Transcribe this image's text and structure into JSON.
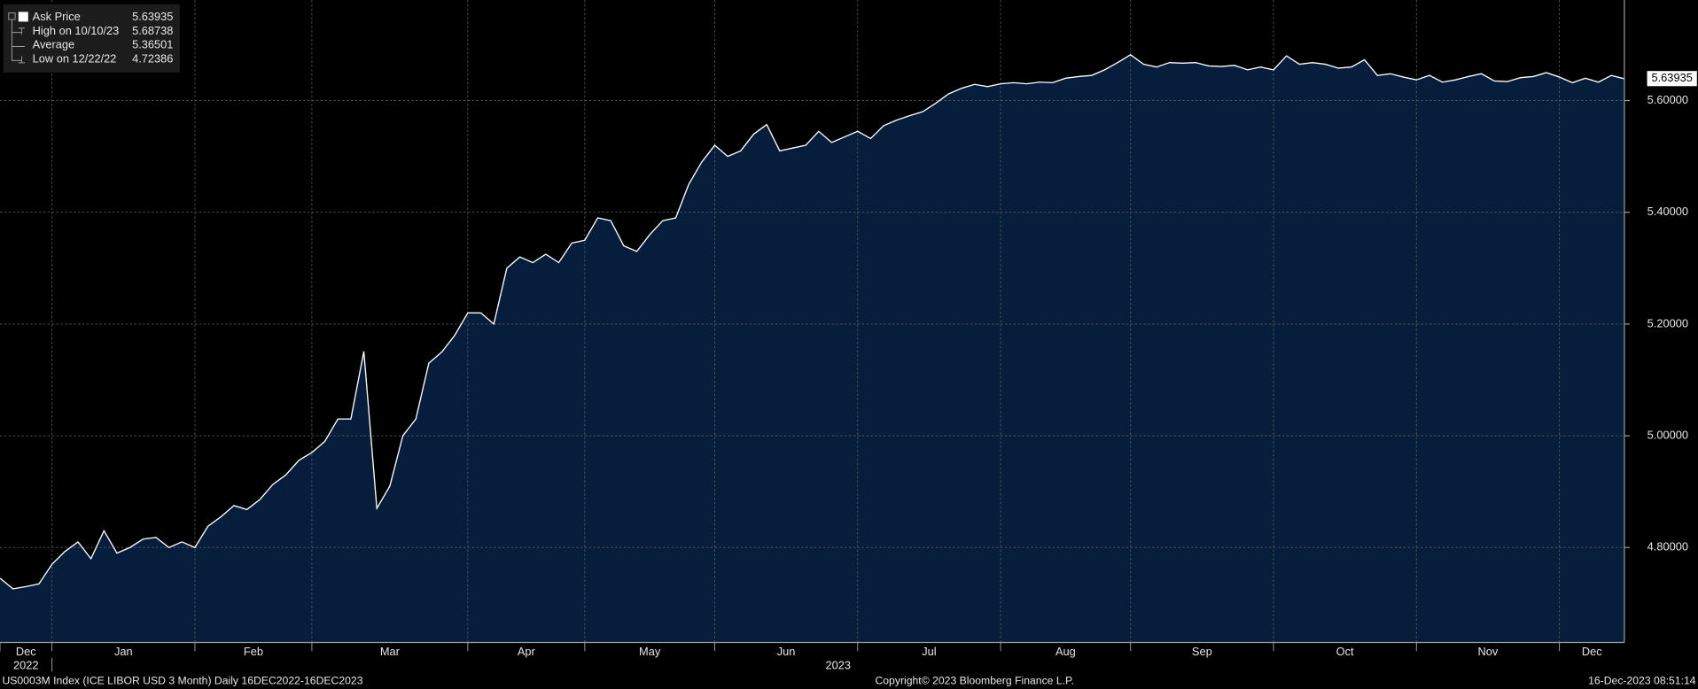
{
  "chart_data": {
    "type": "area",
    "series": [
      {
        "name": "Ask Price",
        "color": "#ffffff",
        "fill": "#061e3c",
        "last": 5.63935,
        "values": [
          4.745,
          4.726,
          4.73,
          4.735,
          4.77,
          4.793,
          4.81,
          4.78,
          4.83,
          4.79,
          4.8,
          4.815,
          4.818,
          4.8,
          4.81,
          4.8,
          4.838,
          4.855,
          4.875,
          4.868,
          4.886,
          4.913,
          4.93,
          4.956,
          4.97,
          4.99,
          5.03,
          5.03,
          5.151,
          4.87,
          4.91,
          5.0,
          5.03,
          5.13,
          5.15,
          5.18,
          5.22,
          5.22,
          5.2,
          5.3,
          5.32,
          5.31,
          5.325,
          5.31,
          5.345,
          5.35,
          5.39,
          5.385,
          5.34,
          5.33,
          5.36,
          5.385,
          5.39,
          5.45,
          5.49,
          5.52,
          5.5,
          5.51,
          5.54,
          5.557,
          5.51,
          5.515,
          5.52,
          5.545,
          5.525,
          5.535,
          5.545,
          5.532,
          5.555,
          5.565,
          5.573,
          5.58,
          5.595,
          5.612,
          5.622,
          5.629,
          5.625,
          5.63,
          5.632,
          5.63,
          5.633,
          5.632,
          5.64,
          5.643,
          5.645,
          5.655,
          5.668,
          5.682,
          5.665,
          5.66,
          5.668,
          5.667,
          5.668,
          5.662,
          5.661,
          5.663,
          5.655,
          5.66,
          5.655,
          5.68,
          5.665,
          5.668,
          5.665,
          5.658,
          5.66,
          5.673,
          5.645,
          5.648,
          5.642,
          5.637,
          5.645,
          5.633,
          5.637,
          5.643,
          5.648,
          5.635,
          5.634,
          5.641,
          5.643,
          5.65,
          5.642,
          5.632,
          5.64,
          5.633,
          5.645,
          5.639
        ]
      }
    ],
    "categories": [
      "Dec",
      null,
      null,
      null,
      "Jan",
      null,
      null,
      null,
      null,
      null,
      null,
      null,
      null,
      null,
      null,
      "Feb",
      null,
      null,
      null,
      null,
      null,
      null,
      null,
      null,
      "Mar",
      null,
      null,
      null,
      null,
      null,
      null,
      null,
      null,
      null,
      null,
      null,
      "Apr",
      null,
      null,
      null,
      null,
      null,
      null,
      null,
      null,
      "May",
      null,
      null,
      null,
      null,
      null,
      null,
      null,
      null,
      null,
      "Jun",
      null,
      null,
      null,
      null,
      null,
      null,
      null,
      null,
      null,
      null,
      "Jul",
      null,
      null,
      null,
      null,
      null,
      null,
      null,
      null,
      null,
      null,
      "Aug",
      null,
      null,
      null,
      null,
      null,
      null,
      null,
      null,
      null,
      "Sep",
      null,
      null,
      null,
      null,
      null,
      null,
      null,
      null,
      null,
      null,
      "Oct",
      null,
      null,
      null,
      null,
      null,
      null,
      null,
      null,
      null,
      null,
      "Nov",
      null,
      null,
      null,
      null,
      null,
      null,
      null,
      null,
      null,
      null,
      "Dec",
      null,
      null,
      null,
      null,
      null
    ],
    "year_labels": [
      "2022",
      "2023"
    ],
    "ylim": [
      4.63,
      5.78
    ],
    "yticks": [
      {
        "value": 4.8,
        "label": "4.80000"
      },
      {
        "value": 5.0,
        "label": "5.00000"
      },
      {
        "value": 5.2,
        "label": "5.20000"
      },
      {
        "value": 5.4,
        "label": "5.40000"
      },
      {
        "value": 5.6,
        "label": "5.60000"
      }
    ],
    "grid": true,
    "y_axis_side": "right",
    "legend": {
      "position": "top-left",
      "stats": [
        {
          "label": "High on 10/10/23",
          "value": 5.68738
        },
        {
          "label": "Average",
          "value": 5.36501
        },
        {
          "label": "Low on 12/22/22",
          "value": 4.72386
        }
      ]
    },
    "footer": {
      "left": "US0003M Index (ICE LIBOR USD 3 Month)  Daily 16DEC2022-16DEC2023",
      "center": "Copyright© 2023 Bloomberg Finance L.P.",
      "right": "16-Dec-2023 08:51:14"
    }
  }
}
